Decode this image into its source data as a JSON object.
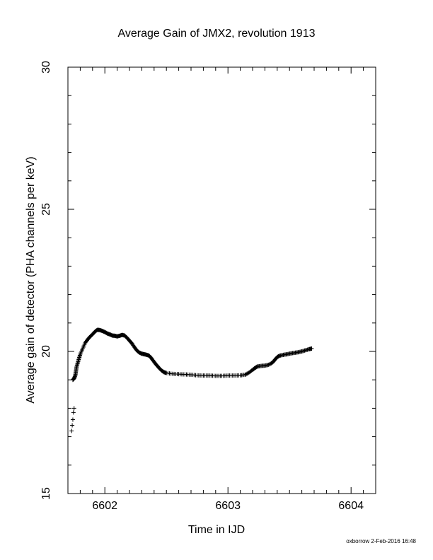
{
  "chart_data": {
    "type": "scatter",
    "title": "Average Gain of JMX2, revolution 1913",
    "xlabel": "Time in IJD",
    "ylabel": "Average gain of detector (PHA channels per keV)",
    "xlim": [
      6601.7,
      6604.2
    ],
    "ylim": [
      15,
      30
    ],
    "x_ticks": [
      6602,
      6603,
      6604
    ],
    "x_tick_labels": [
      "6602",
      "6603",
      "6604"
    ],
    "y_ticks": [
      15,
      20,
      25,
      30
    ],
    "y_tick_labels": [
      "15",
      "20",
      "25",
      "30"
    ],
    "marker": "plus",
    "grid": false,
    "series": [
      {
        "color": "#000000",
        "points": [
          [
            6601.73,
            17.2
          ],
          [
            6601.735,
            17.4
          ],
          [
            6601.74,
            17.6
          ],
          [
            6601.745,
            17.85
          ],
          [
            6601.75,
            18.0
          ],
          [
            6601.74,
            19.0
          ],
          [
            6601.75,
            19.05
          ],
          [
            6601.76,
            19.15
          ],
          [
            6601.765,
            19.3
          ],
          [
            6601.77,
            19.45
          ],
          [
            6601.78,
            19.6
          ],
          [
            6601.79,
            19.75
          ],
          [
            6601.8,
            19.9
          ],
          [
            6601.82,
            20.1
          ],
          [
            6601.84,
            20.3
          ],
          [
            6601.86,
            20.42
          ],
          [
            6601.88,
            20.52
          ],
          [
            6601.9,
            20.6
          ],
          [
            6601.92,
            20.7
          ],
          [
            6601.94,
            20.76
          ],
          [
            6601.96,
            20.75
          ],
          [
            6601.98,
            20.72
          ],
          [
            6602.0,
            20.68
          ],
          [
            6602.02,
            20.63
          ],
          [
            6602.04,
            20.6
          ],
          [
            6602.06,
            20.56
          ],
          [
            6602.08,
            20.55
          ],
          [
            6602.1,
            20.53
          ],
          [
            6602.12,
            20.55
          ],
          [
            6602.14,
            20.58
          ],
          [
            6602.16,
            20.56
          ],
          [
            6602.18,
            20.48
          ],
          [
            6602.2,
            20.38
          ],
          [
            6602.22,
            20.28
          ],
          [
            6602.24,
            20.15
          ],
          [
            6602.26,
            20.03
          ],
          [
            6602.28,
            19.96
          ],
          [
            6602.3,
            19.92
          ],
          [
            6602.32,
            19.9
          ],
          [
            6602.34,
            19.88
          ],
          [
            6602.36,
            19.85
          ],
          [
            6602.38,
            19.75
          ],
          [
            6602.4,
            19.63
          ],
          [
            6602.42,
            19.52
          ],
          [
            6602.44,
            19.42
          ],
          [
            6602.46,
            19.33
          ],
          [
            6602.48,
            19.27
          ],
          [
            6602.5,
            19.24
          ],
          [
            6602.55,
            19.21
          ],
          [
            6602.6,
            19.2
          ],
          [
            6602.65,
            19.19
          ],
          [
            6602.7,
            19.18
          ],
          [
            6602.75,
            19.16
          ],
          [
            6602.8,
            19.15
          ],
          [
            6602.85,
            19.15
          ],
          [
            6602.9,
            19.14
          ],
          [
            6602.95,
            19.14
          ],
          [
            6603.0,
            19.15
          ],
          [
            6603.05,
            19.15
          ],
          [
            6603.1,
            19.16
          ],
          [
            6603.14,
            19.18
          ],
          [
            6603.17,
            19.25
          ],
          [
            6603.2,
            19.35
          ],
          [
            6603.22,
            19.42
          ],
          [
            6603.24,
            19.47
          ],
          [
            6603.27,
            19.49
          ],
          [
            6603.3,
            19.5
          ],
          [
            6603.33,
            19.53
          ],
          [
            6603.36,
            19.6
          ],
          [
            6603.38,
            19.7
          ],
          [
            6603.4,
            19.8
          ],
          [
            6603.42,
            19.85
          ],
          [
            6603.45,
            19.88
          ],
          [
            6603.48,
            19.9
          ],
          [
            6603.51,
            19.93
          ],
          [
            6603.54,
            19.95
          ],
          [
            6603.57,
            19.97
          ],
          [
            6603.6,
            20.0
          ],
          [
            6603.63,
            20.04
          ],
          [
            6603.66,
            20.08
          ],
          [
            6603.68,
            20.1
          ]
        ]
      }
    ]
  },
  "footer": {
    "credit": "oxborrow  2-Feb-2016 16:48"
  }
}
